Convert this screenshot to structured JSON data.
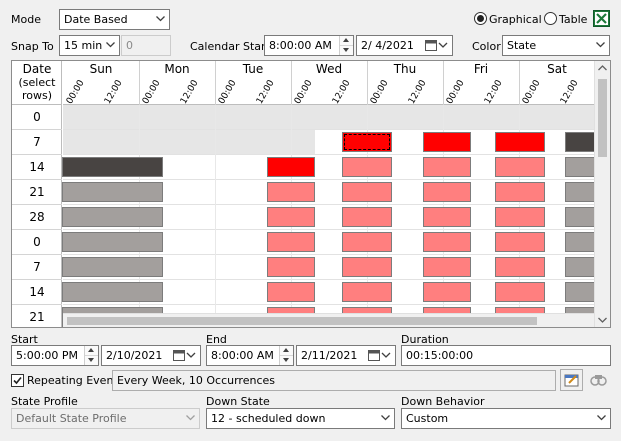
{
  "mode": {
    "label": "Mode",
    "value": "Date Based"
  },
  "view": {
    "graphical": "Graphical",
    "table": "Table",
    "selected": "graphical"
  },
  "snap": {
    "label": "Snap To",
    "value": "15 min",
    "extra": "0"
  },
  "calendar_start": {
    "label": "Calendar Start",
    "time": "8:00:00 AM",
    "date": "2/  4/2021"
  },
  "color": {
    "label": "Color",
    "value": "State"
  },
  "grid": {
    "row_header_title": "Date",
    "row_header_sub": "(select\nrows)",
    "days": [
      "Sun",
      "Mon",
      "Tue",
      "Wed",
      "Thu",
      "Fri",
      "Sat"
    ],
    "tick_labels": [
      "00:00",
      "12:00"
    ],
    "rows": [
      "0",
      "7",
      "14",
      "21",
      "28",
      "0",
      "7",
      "14",
      "21"
    ],
    "colors": {
      "dark": "#484442",
      "gray": "#a39f9d",
      "red": "#ff0000",
      "pink": "#ff7f7f",
      "shade": "#e6e6e6"
    }
  },
  "start": {
    "label": "Start",
    "time": "5:00:00 PM",
    "date": "2/10/2021"
  },
  "end": {
    "label": "End",
    "time": "8:00:00 AM",
    "date": "2/11/2021"
  },
  "duration": {
    "label": "Duration",
    "value": "00:15:00:00"
  },
  "repeating": {
    "label": "Repeating Event",
    "checked": true,
    "summary": "Every Week, 10 Occurrences"
  },
  "state_profile": {
    "label": "State Profile",
    "value": "Default State Profile"
  },
  "down_state": {
    "label": "Down State",
    "value": "12 - scheduled down"
  },
  "down_behavior": {
    "label": "Down Behavior",
    "value": "Custom"
  }
}
